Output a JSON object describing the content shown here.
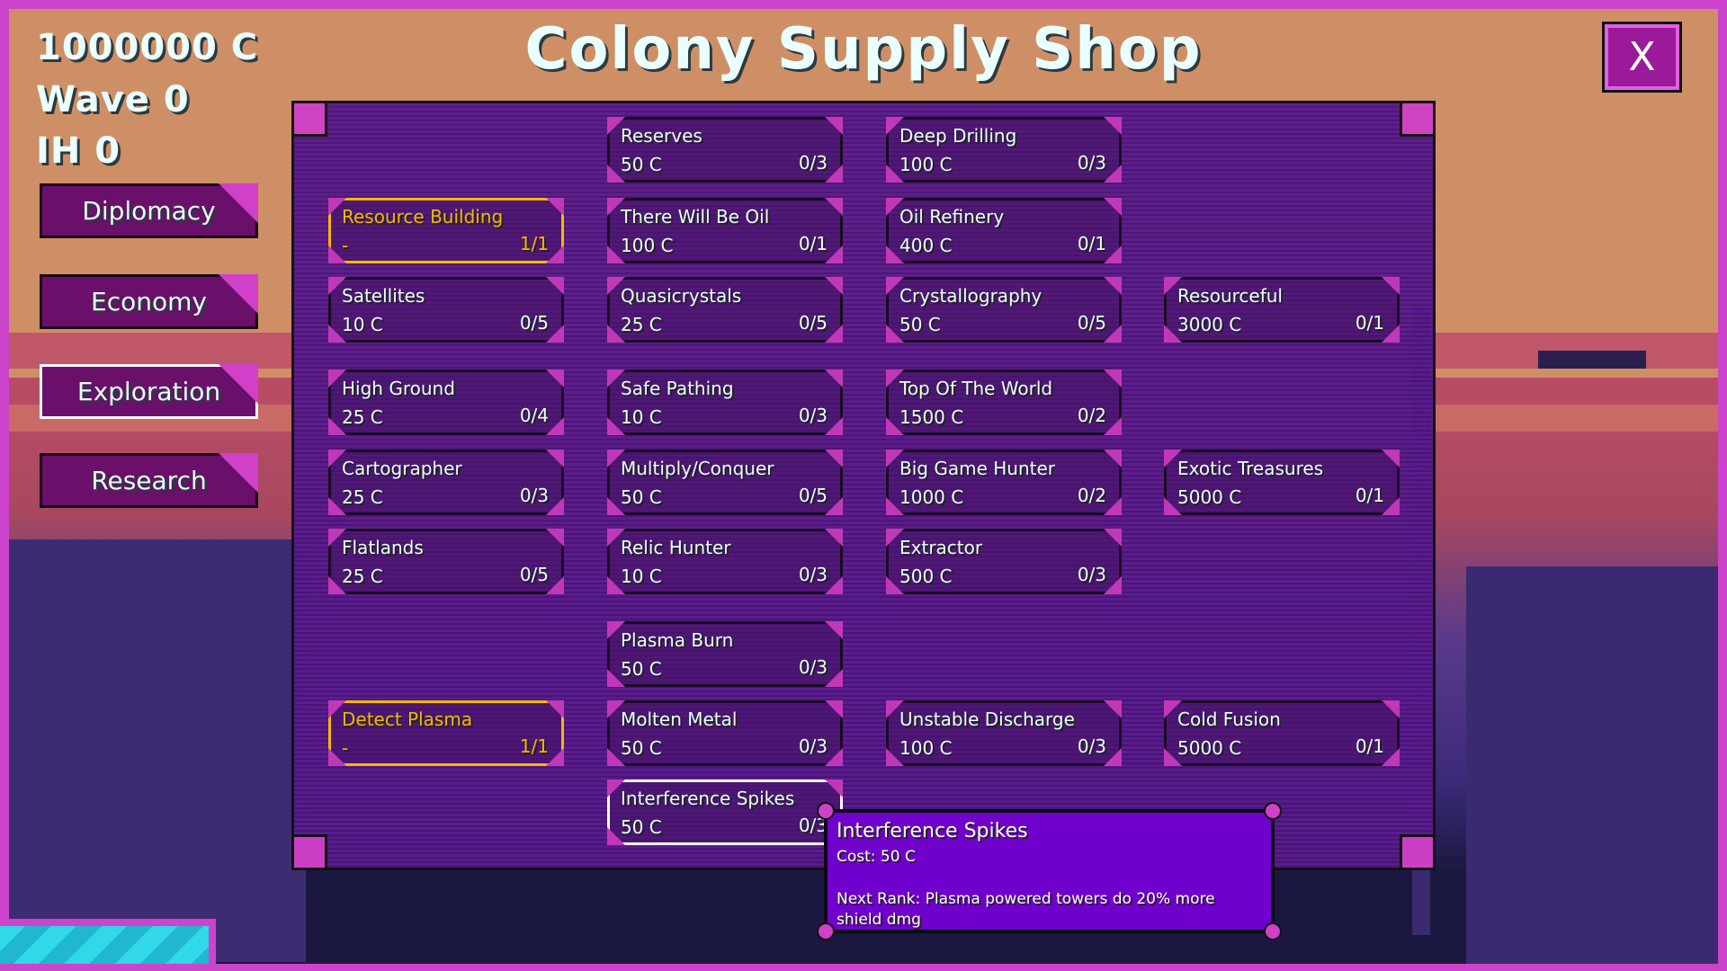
{
  "hud": {
    "credits": "1000000 C",
    "wave": "Wave 0",
    "ih": "IH 0"
  },
  "title": "Colony Supply Shop",
  "close_label": "X",
  "nav": [
    {
      "label": "Diplomacy",
      "active": false
    },
    {
      "label": "Economy",
      "active": false
    },
    {
      "label": "Exploration",
      "active": true
    },
    {
      "label": "Research",
      "active": false
    }
  ],
  "colors": {
    "owned_border": "#f5b800",
    "hover_border": "#ffffff",
    "tooltip_bg": "#7000cc",
    "accent": "#d040c8"
  },
  "cards": [
    {
      "name": "Reserves",
      "cost": "50 C",
      "rank": "0/3",
      "state": "normal"
    },
    {
      "name": "Deep Drilling",
      "cost": "100 C",
      "rank": "0/3",
      "state": "normal"
    },
    {
      "name": "Resource Building",
      "cost": "-",
      "rank": "1/1",
      "state": "owned"
    },
    {
      "name": "There Will Be Oil",
      "cost": "100 C",
      "rank": "0/1",
      "state": "normal"
    },
    {
      "name": "Oil Refinery",
      "cost": "400 C",
      "rank": "0/1",
      "state": "normal"
    },
    {
      "name": "Satellites",
      "cost": "10 C",
      "rank": "0/5",
      "state": "normal"
    },
    {
      "name": "Quasicrystals",
      "cost": "25 C",
      "rank": "0/5",
      "state": "normal"
    },
    {
      "name": "Crystallography",
      "cost": "50 C",
      "rank": "0/5",
      "state": "normal"
    },
    {
      "name": "Resourceful",
      "cost": "3000 C",
      "rank": "0/1",
      "state": "normal"
    },
    {
      "name": "High Ground",
      "cost": "25 C",
      "rank": "0/4",
      "state": "normal"
    },
    {
      "name": "Safe Pathing",
      "cost": "10 C",
      "rank": "0/3",
      "state": "normal"
    },
    {
      "name": "Top Of The World",
      "cost": "1500 C",
      "rank": "0/2",
      "state": "normal"
    },
    {
      "name": "Cartographer",
      "cost": "25 C",
      "rank": "0/3",
      "state": "normal"
    },
    {
      "name": "Multiply/Conquer",
      "cost": "50 C",
      "rank": "0/5",
      "state": "normal"
    },
    {
      "name": "Big Game Hunter",
      "cost": "1000 C",
      "rank": "0/2",
      "state": "normal"
    },
    {
      "name": "Exotic Treasures",
      "cost": "5000 C",
      "rank": "0/1",
      "state": "normal"
    },
    {
      "name": "Flatlands",
      "cost": "25 C",
      "rank": "0/5",
      "state": "normal"
    },
    {
      "name": "Relic Hunter",
      "cost": "10 C",
      "rank": "0/3",
      "state": "normal"
    },
    {
      "name": "Extractor",
      "cost": "500 C",
      "rank": "0/3",
      "state": "normal"
    },
    {
      "name": "Plasma Burn",
      "cost": "50 C",
      "rank": "0/3",
      "state": "normal"
    },
    {
      "name": "Detect Plasma",
      "cost": "-",
      "rank": "1/1",
      "state": "owned"
    },
    {
      "name": "Molten Metal",
      "cost": "50 C",
      "rank": "0/3",
      "state": "normal"
    },
    {
      "name": "Unstable Discharge",
      "cost": "100 C",
      "rank": "0/3",
      "state": "normal"
    },
    {
      "name": "Cold Fusion",
      "cost": "5000 C",
      "rank": "0/1",
      "state": "normal"
    },
    {
      "name": "Interference Spikes",
      "cost": "50 C",
      "rank": "0/3",
      "state": "hover"
    }
  ],
  "tooltip": {
    "title": "Interference Spikes",
    "cost": "Cost: 50 C",
    "description": "Next Rank: Plasma powered towers do 20% more shield dmg"
  }
}
